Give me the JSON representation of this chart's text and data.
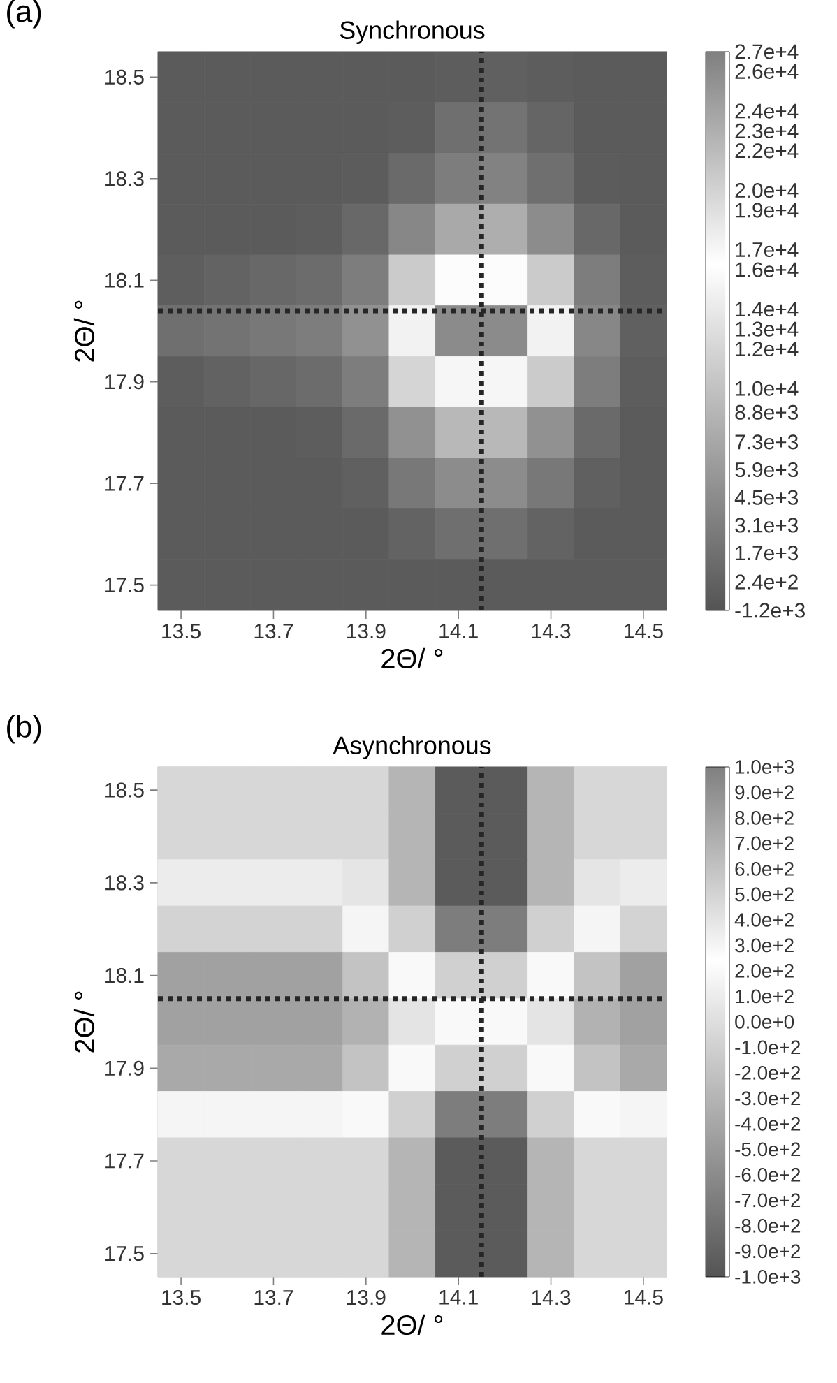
{
  "chart_data": [
    {
      "type": "heatmap",
      "title": "Synchronous",
      "xlabel": "2Θ/ °",
      "ylabel": "2Θ/ °",
      "annotations": [
        "(a)"
      ],
      "categories": [
        "13.5",
        null,
        "13.7",
        null,
        "13.9",
        null,
        "14.1",
        null,
        "14.3",
        null,
        "14.5"
      ],
      "y_categories": [
        "18.5",
        null,
        "18.3",
        null,
        "18.1",
        null,
        "17.9",
        null,
        "17.7",
        null,
        "17.5"
      ],
      "cells": [
        [
          -500,
          -500,
          -500,
          -500,
          -500,
          -500,
          -300,
          0,
          -300,
          -500,
          -500
        ],
        [
          -500,
          -500,
          -500,
          -500,
          -500,
          -300,
          1500,
          2000,
          500,
          -500,
          -500
        ],
        [
          -500,
          -500,
          -500,
          -500,
          -400,
          1000,
          3000,
          3500,
          1500,
          -400,
          -500
        ],
        [
          -500,
          -500,
          -500,
          -300,
          800,
          4000,
          7500,
          8000,
          4500,
          800,
          -500
        ],
        [
          -200,
          300,
          800,
          1200,
          3000,
          11000,
          16000,
          16000,
          11000,
          3000,
          -300
        ],
        [
          1500,
          2000,
          2500,
          3000,
          5000,
          15000,
          26000,
          26000,
          15000,
          4000,
          0
        ],
        [
          -300,
          200,
          700,
          1200,
          3000,
          12000,
          17000,
          17000,
          11000,
          3000,
          -300
        ],
        [
          -500,
          -500,
          -500,
          -300,
          1000,
          5000,
          9000,
          9000,
          5000,
          1000,
          -500
        ],
        [
          -500,
          -500,
          -500,
          -500,
          0,
          2500,
          4500,
          4500,
          2500,
          0,
          -500
        ],
        [
          -500,
          -500,
          -500,
          -500,
          -500,
          300,
          1500,
          1500,
          300,
          -500,
          -500
        ],
        [
          -500,
          -500,
          -500,
          -500,
          -500,
          -500,
          -500,
          -500,
          -500,
          -500,
          -500
        ]
      ],
      "clim": [
        -1200,
        27000
      ],
      "cticks": [
        {
          "value": -1200,
          "label": "-1.2e+3"
        },
        {
          "value": 240,
          "label": "2.4e+2"
        },
        {
          "value": 1700,
          "label": "1.7e+3"
        },
        {
          "value": 3100,
          "label": "3.1e+3"
        },
        {
          "value": 4500,
          "label": "4.5e+3"
        },
        {
          "value": 5900,
          "label": "5.9e+3"
        },
        {
          "value": 7300,
          "label": "7.3e+3"
        },
        {
          "value": 8800,
          "label": "8.8e+3"
        },
        {
          "value": 10000,
          "label": "1.0e+4"
        },
        {
          "value": 12000,
          "label": "1.2e+4"
        },
        {
          "value": 13000,
          "label": "1.3e+4"
        },
        {
          "value": 14000,
          "label": "1.4e+4"
        },
        {
          "value": 16000,
          "label": "1.6e+4"
        },
        {
          "value": 17000,
          "label": "1.7e+4"
        },
        {
          "value": 19000,
          "label": "1.9e+4"
        },
        {
          "value": 20000,
          "label": "2.0e+4"
        },
        {
          "value": 22000,
          "label": "2.2e+4"
        },
        {
          "value": 23000,
          "label": "2.3e+4"
        },
        {
          "value": 24000,
          "label": "2.4e+4"
        },
        {
          "value": 26000,
          "label": "2.6e+4"
        },
        {
          "value": 27000,
          "label": "2.7e+4"
        }
      ]
    },
    {
      "type": "heatmap",
      "title": "Asynchronous",
      "xlabel": "2Θ/ °",
      "ylabel": "2Θ/ °",
      "annotations": [
        "(b)"
      ],
      "categories": [
        "13.5",
        null,
        "13.7",
        null,
        "13.9",
        null,
        "14.1",
        null,
        "14.3",
        null,
        "14.5"
      ],
      "y_categories": [
        "18.5",
        null,
        "18.3",
        null,
        "18.1",
        null,
        "17.9",
        null,
        "17.7",
        null,
        "17.5"
      ],
      "cells": [
        [
          -50,
          -50,
          -50,
          -50,
          -50,
          -300,
          -950,
          -950,
          -300,
          -50,
          -50
        ],
        [
          -50,
          -50,
          -50,
          -50,
          -50,
          -300,
          -950,
          -950,
          -300,
          -50,
          -50
        ],
        [
          100,
          100,
          100,
          100,
          50,
          -300,
          -950,
          -950,
          -300,
          50,
          100
        ],
        [
          500,
          500,
          500,
          500,
          300,
          -100,
          -700,
          -700,
          -100,
          300,
          500
        ],
        [
          800,
          800,
          800,
          800,
          600,
          200,
          -100,
          -100,
          200,
          600,
          800
        ],
        [
          800,
          800,
          800,
          800,
          700,
          400,
          200,
          200,
          400,
          700,
          800
        ],
        [
          750,
          750,
          750,
          750,
          600,
          200,
          -100,
          -100,
          200,
          600,
          750
        ],
        [
          300,
          300,
          300,
          300,
          200,
          -100,
          -700,
          -700,
          -100,
          200,
          300
        ],
        [
          -50,
          -50,
          -50,
          -50,
          -50,
          -300,
          -950,
          -950,
          -300,
          -50,
          -50
        ],
        [
          -50,
          -50,
          -50,
          -50,
          -50,
          -300,
          -950,
          -950,
          -300,
          -50,
          -50
        ],
        [
          -50,
          -50,
          -50,
          -50,
          -50,
          -300,
          -950,
          -950,
          -300,
          -50,
          -50
        ]
      ],
      "clim": [
        -1000,
        1000
      ],
      "cticks": [
        {
          "value": -1000,
          "label": "-1.0e+3"
        },
        {
          "value": -900,
          "label": "-9.0e+2"
        },
        {
          "value": -800,
          "label": "-8.0e+2"
        },
        {
          "value": -700,
          "label": "-7.0e+2"
        },
        {
          "value": -600,
          "label": "-6.0e+2"
        },
        {
          "value": -500,
          "label": "-5.0e+2"
        },
        {
          "value": -400,
          "label": "-4.0e+2"
        },
        {
          "value": -300,
          "label": "-3.0e+2"
        },
        {
          "value": -200,
          "label": "-2.0e+2"
        },
        {
          "value": -100,
          "label": "-1.0e+2"
        },
        {
          "value": 0,
          "label": "0.0e+0"
        },
        {
          "value": 100,
          "label": "1.0e+2"
        },
        {
          "value": 200,
          "label": "2.0e+2"
        },
        {
          "value": 300,
          "label": "3.0e+2"
        },
        {
          "value": 400,
          "label": "4.0e+2"
        },
        {
          "value": 500,
          "label": "5.0e+2"
        },
        {
          "value": 600,
          "label": "6.0e+2"
        },
        {
          "value": 700,
          "label": "7.0e+2"
        },
        {
          "value": 800,
          "label": "8.0e+2"
        },
        {
          "value": 900,
          "label": "9.0e+2"
        },
        {
          "value": 1000,
          "label": "1.0e+3"
        }
      ]
    }
  ]
}
